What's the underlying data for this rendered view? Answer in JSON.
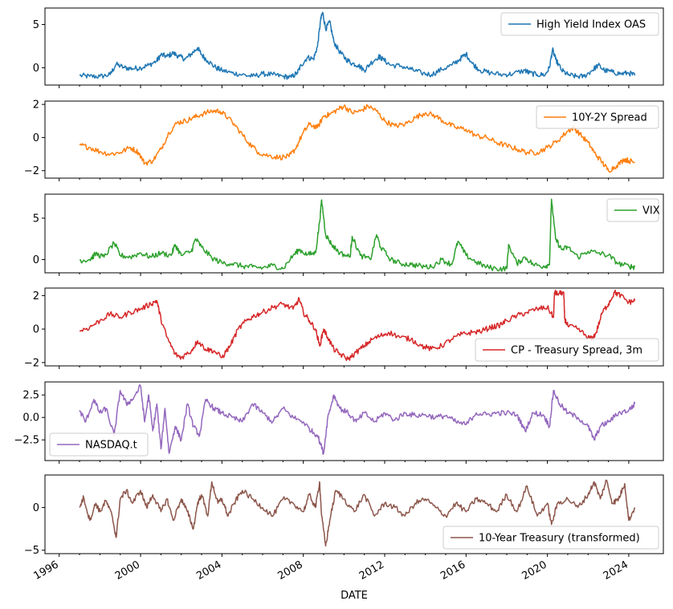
{
  "chart_data": {
    "type": "line",
    "xlabel": "DATE",
    "x_tick_labels": [
      "1996",
      "2000",
      "2004",
      "2008",
      "2012",
      "2016",
      "2020",
      "2024"
    ],
    "x_ticks": [
      1996,
      2000,
      2004,
      2008,
      2012,
      2016,
      2020,
      2024
    ],
    "xlim": [
      1995.3,
      2025.7
    ],
    "grid": false,
    "panels": [
      {
        "series": {
          "name": "High Yield Index OAS",
          "color": "#1f77b4",
          "x": [
            1997.0,
            1997.5,
            1998.0,
            1998.5,
            1998.8,
            1999.2,
            1999.6,
            2000.0,
            2000.4,
            2000.8,
            2001.0,
            2001.3,
            2001.6,
            2001.9,
            2002.2,
            2002.5,
            2002.8,
            2003.0,
            2003.3,
            2003.7,
            2004.0,
            2004.5,
            2005.0,
            2005.5,
            2006.0,
            2006.5,
            2007.0,
            2007.4,
            2007.7,
            2007.9,
            2008.2,
            2008.5,
            2008.7,
            2008.85,
            2008.95,
            2009.1,
            2009.3,
            2009.5,
            2009.8,
            2010.1,
            2010.4,
            2010.7,
            2011.0,
            2011.3,
            2011.7,
            2011.9,
            2012.3,
            2012.8,
            2013.3,
            2013.8,
            2014.3,
            2014.8,
            2015.3,
            2015.7,
            2016.0,
            2016.3,
            2016.7,
            2017.2,
            2017.8,
            2018.3,
            2018.9,
            2019.1,
            2019.5,
            2019.9,
            2020.1,
            2020.25,
            2020.4,
            2020.7,
            2021.0,
            2021.4,
            2021.8,
            2022.2,
            2022.5,
            2022.8,
            2023.2,
            2023.6,
            2024.0,
            2024.3
          ],
          "values": [
            -0.9,
            -1.0,
            -1.0,
            -0.8,
            0.4,
            0.0,
            -0.1,
            0.0,
            0.3,
            0.8,
            1.5,
            1.3,
            1.7,
            1.3,
            1.0,
            1.6,
            2.3,
            1.5,
            0.8,
            0.0,
            -0.3,
            -0.6,
            -0.8,
            -1.0,
            -0.7,
            -0.8,
            -1.0,
            -1.1,
            -0.6,
            0.3,
            1.2,
            1.0,
            2.5,
            5.5,
            6.4,
            4.5,
            5.3,
            3.0,
            1.8,
            1.0,
            0.5,
            0.3,
            -0.3,
            0.5,
            1.3,
            1.0,
            0.3,
            0.2,
            -0.2,
            -0.6,
            -0.8,
            -0.2,
            0.3,
            1.0,
            1.6,
            0.5,
            -0.3,
            -0.6,
            -0.8,
            -0.7,
            -0.3,
            -0.6,
            -0.8,
            -0.8,
            0.0,
            2.1,
            1.0,
            -0.3,
            -0.8,
            -1.0,
            -1.0,
            -0.3,
            0.3,
            -0.3,
            -0.5,
            -0.7,
            -0.6,
            -0.9
          ]
        },
        "ylim": [
          -2.0,
          6.9
        ],
        "y_ticks": [
          0,
          5
        ],
        "y_tick_labels": [
          "0",
          "5"
        ],
        "legend": "upper right"
      },
      {
        "series": {
          "name": "10Y-2Y Spread",
          "color": "#ff7f0e",
          "x": [
            1997.0,
            1997.5,
            1998.0,
            1998.5,
            1999.0,
            1999.5,
            1999.9,
            2000.2,
            2000.6,
            2001.0,
            2001.4,
            2001.8,
            2002.2,
            2002.6,
            2003.0,
            2003.5,
            2003.9,
            2004.3,
            2004.8,
            2005.3,
            2005.8,
            2006.3,
            2006.8,
            2007.3,
            2007.6,
            2008.0,
            2008.3,
            2008.7,
            2009.0,
            2009.3,
            2009.7,
            2010.0,
            2010.4,
            2010.8,
            2011.2,
            2011.6,
            2012.0,
            2012.5,
            2013.0,
            2013.5,
            2014.0,
            2014.5,
            2015.0,
            2015.5,
            2016.0,
            2016.5,
            2017.0,
            2017.5,
            2018.0,
            2018.5,
            2019.0,
            2019.5,
            2020.0,
            2020.5,
            2021.0,
            2021.3,
            2021.6,
            2022.0,
            2022.3,
            2022.7,
            2023.0,
            2023.4,
            2023.8,
            2024.0,
            2024.3
          ],
          "values": [
            -0.45,
            -0.6,
            -0.85,
            -1.0,
            -0.9,
            -0.6,
            -0.9,
            -1.55,
            -1.4,
            -0.7,
            0.3,
            0.9,
            1.0,
            1.2,
            1.4,
            1.6,
            1.6,
            1.2,
            0.5,
            -0.3,
            -0.9,
            -1.1,
            -1.2,
            -1.15,
            -0.7,
            0.3,
            0.8,
            0.6,
            1.3,
            1.4,
            1.7,
            1.9,
            1.5,
            1.6,
            1.9,
            1.6,
            1.0,
            0.7,
            0.8,
            1.2,
            1.5,
            1.3,
            0.9,
            0.6,
            0.5,
            0.1,
            0.0,
            -0.3,
            -0.5,
            -0.7,
            -0.9,
            -0.9,
            -0.6,
            -0.2,
            0.4,
            0.6,
            0.2,
            -0.3,
            -0.9,
            -1.5,
            -2.0,
            -1.7,
            -1.3,
            -1.4,
            -1.5
          ]
        },
        "ylim": [
          -2.45,
          2.2
        ],
        "y_ticks": [
          -2,
          0,
          2
        ],
        "y_tick_labels": [
          "−2",
          "0",
          "2"
        ],
        "legend": "upper right"
      },
      {
        "series": {
          "name": "VIX",
          "color": "#2ca02c",
          "x": [
            1997.0,
            1997.5,
            1997.8,
            1998.2,
            1998.7,
            1999.0,
            1999.5,
            2000.0,
            2000.5,
            2001.0,
            2001.5,
            2001.7,
            2002.0,
            2002.5,
            2002.7,
            2003.0,
            2003.5,
            2004.0,
            2004.5,
            2005.0,
            2005.5,
            2006.0,
            2006.5,
            2007.0,
            2007.5,
            2007.8,
            2008.2,
            2008.6,
            2008.8,
            2008.9,
            2009.1,
            2009.4,
            2009.8,
            2010.3,
            2010.4,
            2010.8,
            2011.3,
            2011.6,
            2011.8,
            2012.3,
            2012.8,
            2013.3,
            2013.8,
            2014.3,
            2014.8,
            2015.3,
            2015.6,
            2016.0,
            2016.5,
            2017.0,
            2017.5,
            2018.0,
            2018.1,
            2018.5,
            2018.9,
            2019.3,
            2019.8,
            2020.1,
            2020.2,
            2020.4,
            2020.7,
            2021.0,
            2021.5,
            2022.0,
            2022.5,
            2023.0,
            2023.5,
            2024.0,
            2024.3
          ],
          "values": [
            -0.1,
            0.0,
            0.7,
            0.3,
            2.0,
            0.5,
            0.3,
            0.8,
            0.3,
            0.8,
            0.5,
            1.8,
            0.5,
            1.0,
            2.5,
            1.5,
            0.2,
            -0.4,
            -0.5,
            -0.8,
            -0.9,
            -1.0,
            -0.7,
            -1.1,
            0.5,
            1.2,
            0.6,
            0.8,
            4.5,
            7.2,
            3.0,
            1.8,
            0.8,
            0.3,
            2.8,
            0.5,
            0.0,
            3.0,
            1.5,
            0.0,
            -0.5,
            -0.6,
            -0.8,
            -0.9,
            0.0,
            -0.6,
            2.2,
            0.5,
            -0.3,
            -0.9,
            -1.1,
            -1.1,
            1.8,
            -0.5,
            0.3,
            -0.6,
            -0.8,
            -0.6,
            7.3,
            2.5,
            1.2,
            1.5,
            0.3,
            1.0,
            0.8,
            0.5,
            -0.5,
            -0.8,
            -0.9
          ]
        },
        "ylim": [
          -1.6,
          7.9
        ],
        "y_ticks": [
          0,
          5
        ],
        "y_tick_labels": [
          "0",
          "5"
        ],
        "legend": "upper right"
      },
      {
        "series": {
          "name": "CP - Treasury Spread, 3m",
          "color": "#d62728",
          "x": [
            1997.0,
            1997.5,
            1998.0,
            1998.5,
            1999.0,
            1999.5,
            2000.0,
            2000.5,
            2000.8,
            2001.0,
            2001.3,
            2001.7,
            2002.0,
            2002.5,
            2002.8,
            2003.2,
            2003.6,
            2004.0,
            2004.4,
            2004.8,
            2005.2,
            2005.6,
            2006.0,
            2006.5,
            2007.0,
            2007.5,
            2007.8,
            2008.0,
            2008.3,
            2008.6,
            2008.8,
            2009.0,
            2009.2,
            2009.5,
            2009.8,
            2010.2,
            2010.6,
            2011.0,
            2011.4,
            2011.8,
            2012.2,
            2012.8,
            2013.3,
            2013.8,
            2014.3,
            2014.8,
            2015.3,
            2015.8,
            2016.3,
            2016.8,
            2017.2,
            2017.6,
            2018.0,
            2018.5,
            2019.0,
            2019.5,
            2020.0,
            2020.3,
            2020.35,
            2020.5,
            2020.8,
            2020.85,
            2021.0,
            2021.5,
            2022.0,
            2022.2,
            2022.4,
            2022.7,
            2023.0,
            2023.3,
            2023.6,
            2024.0,
            2024.3
          ],
          "values": [
            -0.1,
            0.1,
            0.5,
            0.9,
            0.7,
            1.0,
            1.2,
            1.5,
            1.7,
            0.6,
            -0.5,
            -1.5,
            -1.7,
            -1.3,
            -0.7,
            -1.2,
            -1.3,
            -1.7,
            -1.0,
            0.0,
            0.5,
            0.8,
            1.0,
            1.3,
            1.5,
            1.2,
            1.8,
            1.0,
            0.5,
            0.0,
            -1.0,
            0.0,
            -0.5,
            -1.2,
            -1.5,
            -1.8,
            -1.4,
            -1.0,
            -0.6,
            -0.4,
            -0.2,
            -0.5,
            -0.6,
            -1.0,
            -1.2,
            -1.0,
            -0.6,
            -0.3,
            -0.2,
            -0.1,
            0.1,
            0.2,
            0.5,
            0.8,
            1.0,
            1.2,
            1.3,
            0.7,
            2.2,
            2.1,
            2.2,
            0.6,
            0.2,
            0.0,
            -0.5,
            -0.6,
            -0.2,
            1.0,
            1.5,
            2.2,
            2.0,
            1.6,
            1.7
          ]
        },
        "ylim": [
          -2.2,
          2.45
        ],
        "y_ticks": [
          -2,
          0,
          2
        ],
        "y_tick_labels": [
          "−2",
          "0",
          "2"
        ],
        "legend": "lower right"
      },
      {
        "series": {
          "name": "NASDAQ.t",
          "color": "#9467bd",
          "x": [
            1997.0,
            1997.3,
            1997.7,
            1998.0,
            1998.3,
            1998.7,
            1999.0,
            1999.3,
            1999.6,
            2000.0,
            2000.2,
            2000.4,
            2000.6,
            2000.8,
            2001.0,
            2001.2,
            2001.4,
            2001.7,
            2002.0,
            2002.3,
            2002.6,
            2002.9,
            2003.2,
            2003.6,
            2004.0,
            2004.5,
            2005.0,
            2005.5,
            2006.0,
            2006.5,
            2007.0,
            2007.5,
            2008.0,
            2008.4,
            2008.7,
            2009.0,
            2009.2,
            2009.5,
            2009.8,
            2010.2,
            2010.6,
            2011.0,
            2011.5,
            2012.0,
            2012.5,
            2013.0,
            2013.5,
            2014.0,
            2014.5,
            2015.0,
            2015.5,
            2016.0,
            2016.5,
            2017.0,
            2017.5,
            2018.0,
            2018.5,
            2018.9,
            2019.3,
            2019.8,
            2020.1,
            2020.3,
            2020.6,
            2021.0,
            2021.5,
            2022.0,
            2022.3,
            2022.6,
            2023.0,
            2023.5,
            2024.0,
            2024.3
          ],
          "values": [
            0.8,
            -0.5,
            2.0,
            0.5,
            1.0,
            -2.0,
            3.0,
            1.5,
            2.0,
            3.5,
            -0.5,
            2.5,
            -1.5,
            1.5,
            -3.5,
            1.0,
            -4.0,
            -1.0,
            -2.5,
            1.5,
            -1.0,
            -2.0,
            2.0,
            1.0,
            0.5,
            0.0,
            -0.5,
            1.5,
            0.5,
            -0.5,
            1.0,
            0.0,
            -0.5,
            -1.5,
            -2.0,
            -4.0,
            0.0,
            2.5,
            1.0,
            0.5,
            -0.5,
            0.5,
            -0.5,
            0.5,
            -0.3,
            0.5,
            0.2,
            0.3,
            0.0,
            0.2,
            -0.5,
            -0.8,
            0.5,
            0.3,
            0.5,
            0.5,
            0.3,
            -1.5,
            0.5,
            0.3,
            -1.0,
            3.0,
            1.5,
            0.5,
            0.0,
            -1.0,
            -2.5,
            -1.0,
            -0.5,
            0.5,
            0.8,
            1.5
          ]
        },
        "ylim": [
          -4.8,
          3.95
        ],
        "y_ticks": [
          -2.5,
          0.0,
          2.5
        ],
        "y_tick_labels": [
          "−2.5",
          "0.0",
          "2.5"
        ],
        "legend": "lower left"
      },
      {
        "series": {
          "name": "10-Year Treasury (transformed)",
          "color": "#8c564b",
          "x": [
            1997.0,
            1997.2,
            1997.5,
            1997.8,
            1998.0,
            1998.3,
            1998.6,
            1998.8,
            1999.0,
            1999.3,
            1999.6,
            2000.0,
            2000.3,
            2000.6,
            2001.0,
            2001.3,
            2001.6,
            2002.0,
            2002.3,
            2002.6,
            2002.8,
            2003.0,
            2003.3,
            2003.5,
            2003.8,
            2004.0,
            2004.3,
            2004.6,
            2005.0,
            2005.5,
            2006.0,
            2006.5,
            2007.0,
            2007.5,
            2008.0,
            2008.3,
            2008.6,
            2008.8,
            2008.9,
            2009.1,
            2009.3,
            2009.6,
            2010.0,
            2010.5,
            2011.0,
            2011.5,
            2012.0,
            2012.5,
            2013.0,
            2013.5,
            2014.0,
            2014.5,
            2015.0,
            2015.5,
            2016.0,
            2016.5,
            2017.0,
            2017.5,
            2018.0,
            2018.5,
            2019.0,
            2019.5,
            2020.0,
            2020.2,
            2020.5,
            2021.0,
            2021.5,
            2022.0,
            2022.3,
            2022.6,
            2022.9,
            2023.2,
            2023.5,
            2023.8,
            2024.0,
            2024.3
          ],
          "values": [
            0.0,
            1.2,
            -1.5,
            0.5,
            -0.5,
            0.8,
            -1.0,
            -3.5,
            1.0,
            2.0,
            0.5,
            2.0,
            0.0,
            1.5,
            -0.5,
            1.0,
            -1.5,
            1.0,
            -0.5,
            -2.5,
            0.5,
            1.5,
            -1.0,
            3.0,
            0.5,
            1.0,
            -1.0,
            0.5,
            2.0,
            1.0,
            0.0,
            -1.0,
            1.0,
            0.5,
            -0.5,
            1.5,
            0.0,
            3.0,
            -1.0,
            -4.5,
            -1.5,
            2.0,
            1.0,
            -0.5,
            1.5,
            -1.0,
            0.5,
            0.0,
            -1.0,
            0.5,
            1.0,
            0.0,
            -1.0,
            0.5,
            -0.5,
            1.0,
            0.5,
            -0.5,
            1.5,
            -0.5,
            2.5,
            -1.0,
            0.5,
            -2.0,
            0.5,
            1.0,
            0.0,
            1.5,
            3.0,
            1.0,
            3.2,
            0.5,
            1.0,
            2.8,
            -1.5,
            0.0
          ]
        },
        "ylim": [
          -5.4,
          3.8
        ],
        "y_ticks": [
          -5,
          0
        ],
        "y_tick_labels": [
          "−5",
          "0"
        ],
        "legend": "lower right"
      }
    ]
  }
}
